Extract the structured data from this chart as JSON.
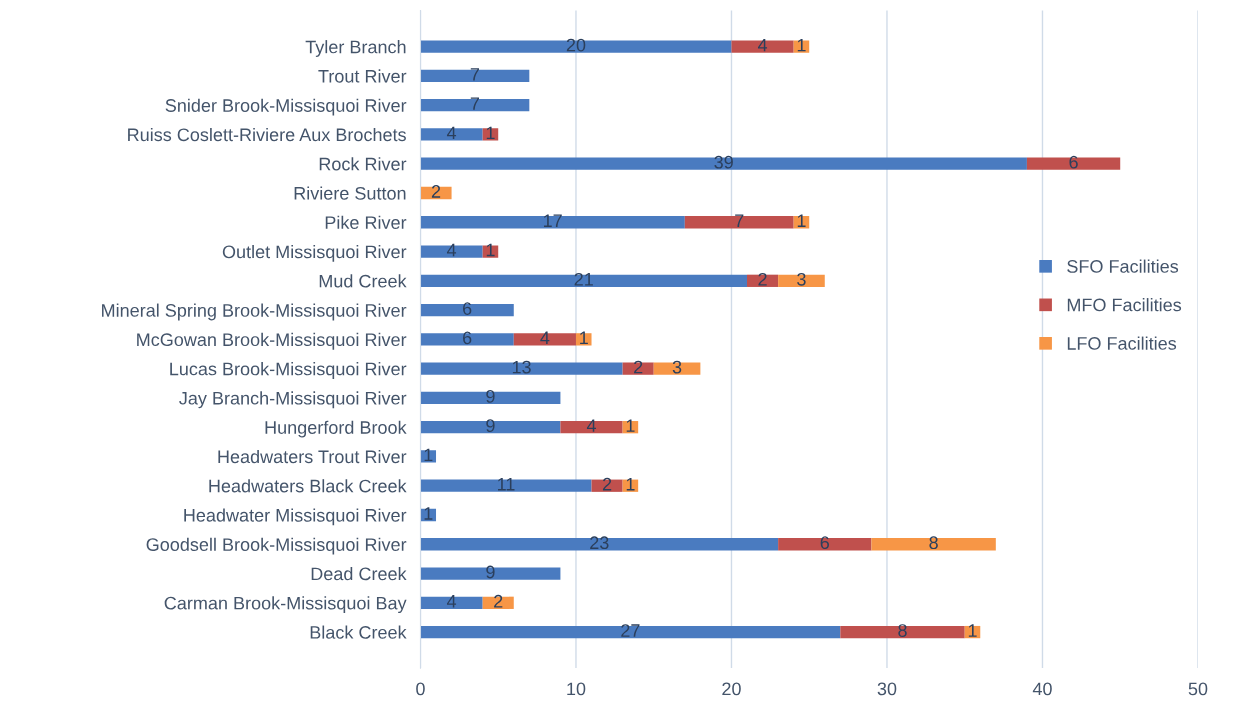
{
  "chart_data": {
    "type": "bar",
    "orientation": "horizontal",
    "stacked": true,
    "categories": [
      "Tyler Branch",
      "Trout River",
      "Snider Brook-Missisquoi River",
      "Ruiss Coslett-Riviere Aux Brochets",
      "Rock River",
      "Riviere Sutton",
      "Pike River",
      "Outlet Missisquoi River",
      "Mud Creek",
      "Mineral Spring Brook-Missisquoi River",
      "McGowan Brook-Missisquoi River",
      "Lucas Brook-Missisquoi River",
      "Jay Branch-Missisquoi River",
      "Hungerford Brook",
      "Headwaters Trout River",
      "Headwaters Black Creek",
      "Headwater Missisquoi River",
      "Goodsell Brook-Missisquoi River",
      "Dead Creek",
      "Carman Brook-Missisquoi Bay",
      "Black Creek"
    ],
    "series": [
      {
        "name": "SFO Facilities",
        "color": "#4a7bc0",
        "values": [
          20,
          7,
          7,
          4,
          39,
          null,
          17,
          4,
          21,
          6,
          6,
          13,
          9,
          9,
          1,
          11,
          1,
          23,
          9,
          4,
          27
        ]
      },
      {
        "name": "MFO Facilities",
        "color": "#c0504d",
        "values": [
          4,
          null,
          null,
          1,
          6,
          null,
          7,
          1,
          2,
          null,
          4,
          2,
          null,
          4,
          null,
          2,
          null,
          6,
          null,
          null,
          8
        ]
      },
      {
        "name": "LFO Facilities",
        "color": "#f79646",
        "values": [
          1,
          null,
          null,
          null,
          null,
          2,
          1,
          null,
          3,
          null,
          1,
          3,
          null,
          1,
          null,
          1,
          null,
          8,
          null,
          2,
          1
        ]
      }
    ],
    "xlim": [
      0,
      50
    ],
    "xticks": [
      0,
      10,
      20,
      30,
      40,
      50
    ],
    "grid": "x",
    "legend": "right",
    "data_labels": true
  }
}
